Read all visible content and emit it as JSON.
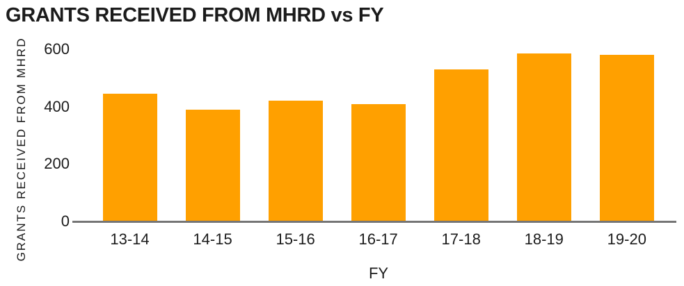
{
  "chart_data": {
    "type": "bar",
    "title": "GRANTS RECEIVED FROM MHRD vs FY",
    "xlabel": "FY",
    "ylabel": "GRANTS RECEIVED FROM MHRD",
    "categories": [
      "13-14",
      "14-15",
      "15-16",
      "16-17",
      "17-18",
      "18-19",
      "19-20"
    ],
    "values": [
      445,
      390,
      420,
      410,
      530,
      585,
      580
    ],
    "ylim": [
      0,
      600
    ],
    "yticks": [
      0,
      200,
      400,
      600
    ],
    "grid": false,
    "legend": "none",
    "bar_color": "#FFA000",
    "axis_color": "#757575",
    "text_color": "#1B1B1B"
  }
}
